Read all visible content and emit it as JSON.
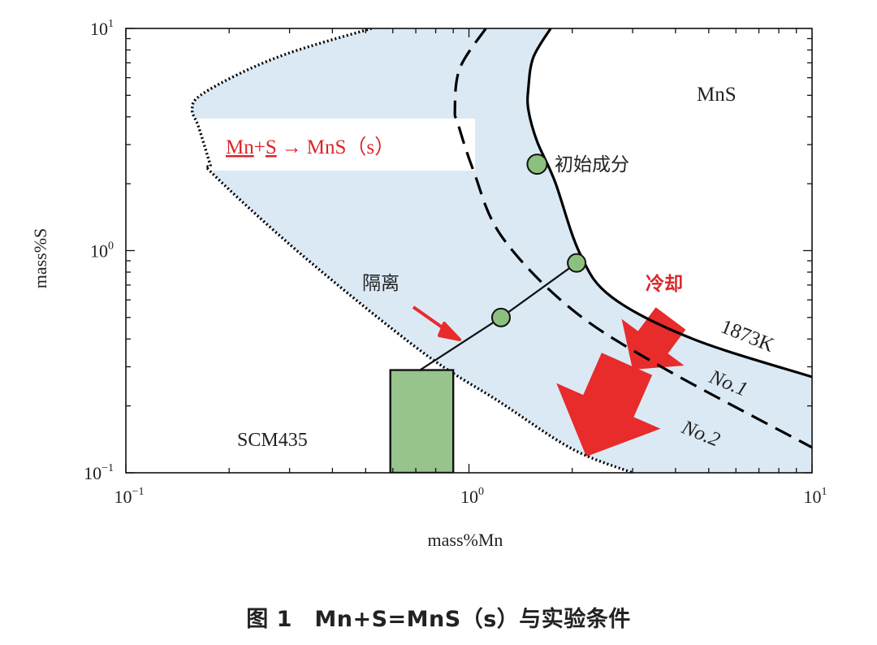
{
  "chart_data": {
    "type": "line",
    "xlabel": "mass%Mn",
    "ylabel": "mass%S",
    "xscale": "log",
    "yscale": "log",
    "xlim": [
      0.1,
      10
    ],
    "ylim": [
      0.1,
      10
    ],
    "x_ticks": [
      {
        "value": 0.1,
        "base": "10",
        "exp": "−1"
      },
      {
        "value": 1,
        "base": "10",
        "exp": "0"
      },
      {
        "value": 10,
        "base": "10",
        "exp": "1"
      }
    ],
    "y_ticks": [
      {
        "value": 0.1,
        "base": "10",
        "exp": "−1"
      },
      {
        "value": 1,
        "base": "10",
        "exp": "0"
      },
      {
        "value": 10,
        "base": "10",
        "exp": "1"
      }
    ],
    "series": [
      {
        "name": "1873K",
        "style": "solid",
        "color": "#000000",
        "points": [
          [
            1.73,
            10
          ],
          [
            1.54,
            7.4
          ],
          [
            1.49,
            5.4
          ],
          [
            1.49,
            4.3
          ],
          [
            1.58,
            3.1
          ],
          [
            1.78,
            2.05
          ],
          [
            2.1,
            0.98
          ],
          [
            2.6,
            0.62
          ],
          [
            4.5,
            0.4
          ],
          [
            10,
            0.27
          ]
        ]
      },
      {
        "name": "No.1",
        "style": "dashed",
        "color": "#000000",
        "points": [
          [
            1.12,
            10
          ],
          [
            0.94,
            6.6
          ],
          [
            0.91,
            4.3
          ],
          [
            0.93,
            3.7
          ],
          [
            1.03,
            2.3
          ],
          [
            1.24,
            1.17
          ],
          [
            1.95,
            0.56
          ],
          [
            3.5,
            0.31
          ],
          [
            10,
            0.13
          ]
        ]
      },
      {
        "name": "No.2",
        "style": "dotted",
        "color": "#000000",
        "points": [
          [
            0.52,
            10
          ],
          [
            0.31,
            7.9
          ],
          [
            0.221,
            6.4
          ],
          [
            0.165,
            5
          ],
          [
            0.156,
            4.3
          ],
          [
            0.163,
            3.6
          ],
          [
            0.176,
            2.45
          ],
          [
            0.18,
            2.2
          ],
          [
            0.33,
            0.94
          ],
          [
            0.73,
            0.35
          ],
          [
            1.22,
            0.21
          ],
          [
            2,
            0.128
          ],
          [
            3,
            0.1
          ]
        ]
      }
    ],
    "markers": [
      {
        "x": 1.58,
        "y": 2.45,
        "label": "初始成分"
      },
      {
        "x": 2.06,
        "y": 0.88
      },
      {
        "x": 1.24,
        "y": 0.5
      }
    ],
    "path_line": [
      [
        0.72,
        0.29
      ],
      [
        1.24,
        0.5
      ],
      [
        2.06,
        0.88
      ]
    ],
    "rect_region": {
      "x": [
        0.59,
        0.9
      ],
      "y": [
        0.1,
        0.29
      ],
      "color": "#97c38d"
    },
    "band_color": "#dbe9f5",
    "marker_color": "#8cc07e",
    "arrow_color": "#e82b2b",
    "annotations": {
      "reaction": {
        "mn": "Mn",
        "plus": "+",
        "s": "S",
        "arrow": "→",
        "rest": "MnS（s）"
      },
      "mns": "MnS",
      "initial": "初始成分",
      "separation": "隔离",
      "cooling": "冷却",
      "t1873": "1873K",
      "no1": "No.1",
      "no2": "No.2",
      "scm": "SCM435"
    },
    "grid": false,
    "legend": "none"
  },
  "caption": "图 1　Mn+S=MnS（s）与实验条件"
}
